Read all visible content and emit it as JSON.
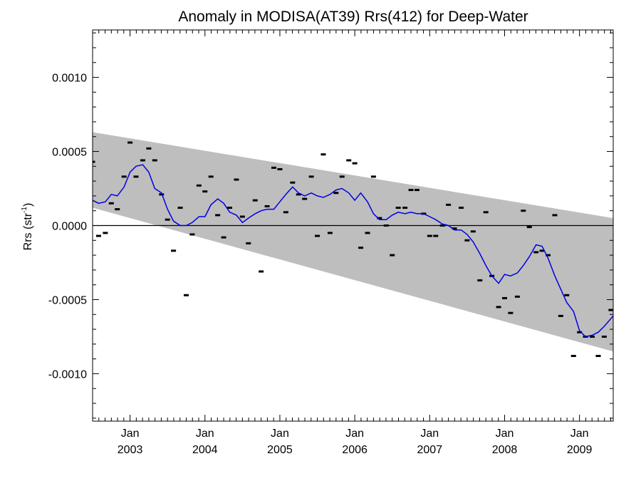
{
  "chart_data": {
    "type": "line",
    "title": "Anomaly in MODISA(AT39) Rrs(412) for Deep-Water",
    "ylabel": "Rrs (str",
    "ylabel_sup": "-1",
    "ylabel_close": ")",
    "xlim": [
      2002.5,
      2009.45
    ],
    "ylim": [
      -0.00132,
      0.00132
    ],
    "yticks": [
      {
        "value": 0.001,
        "label": "0.0010"
      },
      {
        "value": 0.0005,
        "label": "0.0005"
      },
      {
        "value": 0.0,
        "label": "0.0000"
      },
      {
        "value": -0.0005,
        "label": "-0.0005"
      },
      {
        "value": -0.001,
        "label": "-0.0010"
      }
    ],
    "xticks": [
      {
        "value": 2003.0,
        "month": "Jan",
        "year": "2003"
      },
      {
        "value": 2004.0,
        "month": "Jan",
        "year": "2004"
      },
      {
        "value": 2005.0,
        "month": "Jan",
        "year": "2005"
      },
      {
        "value": 2006.0,
        "month": "Jan",
        "year": "2006"
      },
      {
        "value": 2007.0,
        "month": "Jan",
        "year": "2007"
      },
      {
        "value": 2008.0,
        "month": "Jan",
        "year": "2008"
      },
      {
        "value": 2009.0,
        "month": "Jan",
        "year": "2009"
      }
    ],
    "envelope": {
      "upper": [
        [
          2002.5,
          0.00063
        ],
        [
          2009.45,
          5e-05
        ]
      ],
      "lower": [
        [
          2002.5,
          0.00012
        ],
        [
          2009.45,
          -0.00085
        ]
      ],
      "color": "#bebebe"
    },
    "zero_line": 0.0,
    "colors": {
      "smooth": "#0000e6",
      "points": "#000000"
    },
    "series": [
      {
        "kind": "points",
        "x": [
          2002.5,
          2002.58,
          2002.67,
          2002.75,
          2002.83,
          2002.92,
          2003.0,
          2003.08,
          2003.17,
          2003.25,
          2003.33,
          2003.42,
          2003.5,
          2003.58,
          2003.67,
          2003.75,
          2003.83,
          2003.92,
          2004.0,
          2004.08,
          2004.17,
          2004.25,
          2004.33,
          2004.42,
          2004.5,
          2004.58,
          2004.67,
          2004.75,
          2004.83,
          2004.92,
          2005.0,
          2005.08,
          2005.17,
          2005.25,
          2005.33,
          2005.42,
          2005.5,
          2005.58,
          2005.67,
          2005.75,
          2005.83,
          2005.92,
          2006.0,
          2006.08,
          2006.17,
          2006.25,
          2006.33,
          2006.42,
          2006.5,
          2006.58,
          2006.67,
          2006.75,
          2006.83,
          2006.92,
          2007.0,
          2007.08,
          2007.17,
          2007.25,
          2007.33,
          2007.42,
          2007.5,
          2007.58,
          2007.67,
          2007.75,
          2007.83,
          2007.92,
          2008.0,
          2008.08,
          2008.17,
          2008.25,
          2008.33,
          2008.42,
          2008.5,
          2008.58,
          2008.67,
          2008.75,
          2008.83,
          2008.92,
          2009.0,
          2009.08,
          2009.17,
          2009.25,
          2009.33,
          2009.42
        ],
        "y": [
          0.00043,
          -7e-05,
          -5e-05,
          0.00015,
          0.00011,
          0.00033,
          0.00056,
          0.00033,
          0.00044,
          0.00052,
          0.00044,
          0.00021,
          4e-05,
          -0.00017,
          0.00012,
          -0.00047,
          -6e-05,
          0.00027,
          0.00023,
          0.00033,
          7e-05,
          -8e-05,
          0.00012,
          0.00031,
          6e-05,
          -0.00012,
          0.00017,
          -0.00031,
          0.00013,
          0.00039,
          0.00038,
          9e-05,
          0.00029,
          0.00021,
          0.00018,
          0.00033,
          -7e-05,
          0.00048,
          -5e-05,
          0.00022,
          0.00033,
          0.00044,
          0.00042,
          -0.00015,
          -5e-05,
          0.00033,
          5e-05,
          0.0,
          -0.0002,
          0.00012,
          0.00012,
          0.00024,
          0.00024,
          8e-05,
          -7e-05,
          -7e-05,
          0.0,
          0.00014,
          -2e-05,
          0.00012,
          -0.0001,
          -4e-05,
          -0.00037,
          9e-05,
          -0.00034,
          -0.00055,
          -0.00049,
          -0.00059,
          -0.00048,
          0.0001,
          -1e-05,
          -0.00018,
          -0.00017,
          -0.0002,
          7e-05,
          -0.00061,
          -0.00047,
          -0.00088,
          -0.00072,
          -0.00075,
          -0.00075,
          -0.00088,
          -0.00075,
          -0.00057
        ]
      },
      {
        "kind": "smoothed",
        "x": [
          2002.5,
          2002.58,
          2002.67,
          2002.75,
          2002.83,
          2002.92,
          2003.0,
          2003.08,
          2003.17,
          2003.25,
          2003.33,
          2003.42,
          2003.5,
          2003.58,
          2003.67,
          2003.75,
          2003.83,
          2003.92,
          2004.0,
          2004.08,
          2004.17,
          2004.25,
          2004.33,
          2004.42,
          2004.5,
          2004.58,
          2004.67,
          2004.75,
          2004.83,
          2004.92,
          2005.0,
          2005.08,
          2005.17,
          2005.25,
          2005.33,
          2005.42,
          2005.5,
          2005.58,
          2005.67,
          2005.75,
          2005.83,
          2005.92,
          2006.0,
          2006.08,
          2006.17,
          2006.25,
          2006.33,
          2006.42,
          2006.5,
          2006.58,
          2006.67,
          2006.75,
          2006.83,
          2006.92,
          2007.0,
          2007.08,
          2007.17,
          2007.25,
          2007.33,
          2007.42,
          2007.5,
          2007.58,
          2007.67,
          2007.75,
          2007.83,
          2007.92,
          2008.0,
          2008.08,
          2008.17,
          2008.25,
          2008.33,
          2008.42,
          2008.5,
          2008.58,
          2008.67,
          2008.75,
          2008.83,
          2008.92,
          2009.0,
          2009.08,
          2009.17,
          2009.25,
          2009.33,
          2009.45
        ],
        "y": [
          0.00017,
          0.00015,
          0.00016,
          0.00021,
          0.0002,
          0.00026,
          0.00036,
          0.0004,
          0.00041,
          0.00036,
          0.00025,
          0.00022,
          0.00011,
          3e-05,
          0.0,
          0.0,
          2e-05,
          6e-05,
          6e-05,
          0.00014,
          0.00018,
          0.00015,
          9e-05,
          7e-05,
          2e-05,
          5e-05,
          8e-05,
          0.0001,
          0.00011,
          0.00011,
          0.00016,
          0.00021,
          0.00026,
          0.00022,
          0.0002,
          0.00022,
          0.0002,
          0.00019,
          0.00021,
          0.00024,
          0.00025,
          0.00022,
          0.00017,
          0.00022,
          0.00016,
          8e-05,
          4e-05,
          4e-05,
          7e-05,
          9e-05,
          8e-05,
          9e-05,
          8e-05,
          8e-05,
          6e-05,
          4e-05,
          1e-05,
          0.0,
          -3e-05,
          -3e-05,
          -6e-05,
          -0.00011,
          -0.00019,
          -0.00027,
          -0.00034,
          -0.00039,
          -0.00033,
          -0.00034,
          -0.00032,
          -0.00027,
          -0.00021,
          -0.00013,
          -0.00014,
          -0.00022,
          -0.00034,
          -0.00043,
          -0.00052,
          -0.00058,
          -0.00071,
          -0.00075,
          -0.00074,
          -0.00072,
          -0.00068,
          -0.00061
        ]
      }
    ]
  }
}
